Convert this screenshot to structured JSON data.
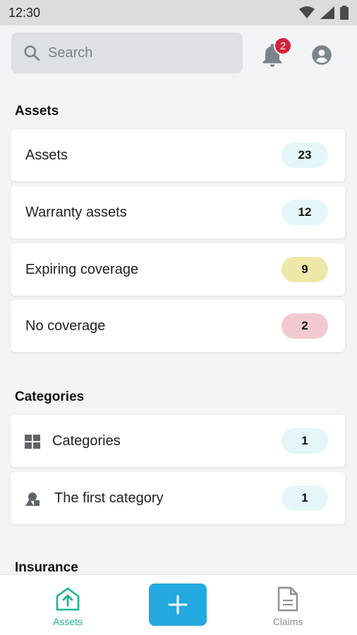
{
  "status_bar": {
    "time": "12:30"
  },
  "search": {
    "placeholder": "Search"
  },
  "notifications": {
    "count": "2"
  },
  "sections": {
    "assets": {
      "title": "Assets",
      "items": [
        {
          "label": "Assets",
          "count": "23",
          "badge_color": "#e4f6f9"
        },
        {
          "label": "Warranty assets",
          "count": "12",
          "badge_color": "#e4f6f9"
        },
        {
          "label": "Expiring coverage",
          "count": "9",
          "badge_color": "#ede7a8"
        },
        {
          "label": "No coverage",
          "count": "2",
          "badge_color": "#f2c9d1"
        }
      ]
    },
    "categories": {
      "title": "Categories",
      "items": [
        {
          "label": "Categories",
          "count": "1",
          "icon": "grid-icon",
          "badge_color": "#e4f6f9"
        },
        {
          "label": "The first category",
          "count": "1",
          "icon": "category-shapes-icon",
          "badge_color": "#e4f6f9"
        }
      ]
    },
    "insurance": {
      "title": "Insurance"
    }
  },
  "bottom_nav": {
    "assets_label": "Assets",
    "claims_label": "Claims",
    "active_color": "#1cb68f",
    "inactive_color": "#8a8f94",
    "fab_color": "#24a8e0"
  }
}
